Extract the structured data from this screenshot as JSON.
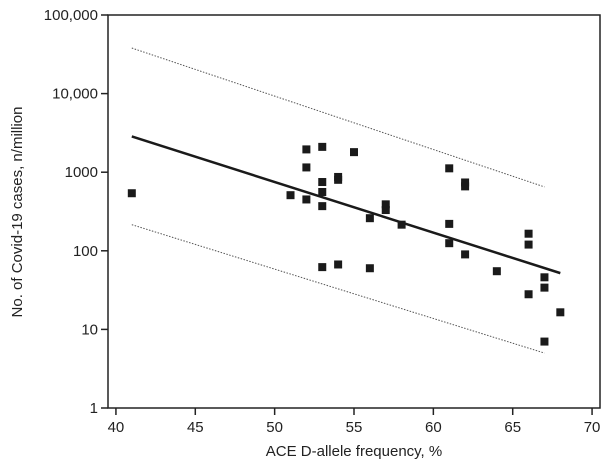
{
  "chart_data": {
    "type": "scatter",
    "xlabel": "ACE D-allele frequency, %",
    "ylabel": "No. of Covid-19 cases, n/million",
    "xlim": [
      39.5,
      70.5
    ],
    "ylim": [
      1,
      100000
    ],
    "yscale": "log",
    "x_ticks": [
      40,
      45,
      50,
      55,
      60,
      65,
      70
    ],
    "x_tick_labels": [
      "40",
      "45",
      "50",
      "55",
      "60",
      "65",
      "70"
    ],
    "y_ticks": [
      1,
      10,
      100,
      1000,
      10000,
      100000
    ],
    "y_tick_labels": [
      "1",
      "10",
      "100",
      "1000",
      "10,000",
      "100,000"
    ],
    "grid": false,
    "points": [
      {
        "x": 41,
        "y": 540
      },
      {
        "x": 51,
        "y": 510
      },
      {
        "x": 52,
        "y": 1950
      },
      {
        "x": 52,
        "y": 1150
      },
      {
        "x": 52,
        "y": 450
      },
      {
        "x": 53,
        "y": 2100
      },
      {
        "x": 53,
        "y": 750
      },
      {
        "x": 53,
        "y": 560
      },
      {
        "x": 53,
        "y": 370
      },
      {
        "x": 53,
        "y": 62
      },
      {
        "x": 54,
        "y": 870
      },
      {
        "x": 54,
        "y": 800
      },
      {
        "x": 54,
        "y": 67
      },
      {
        "x": 55,
        "y": 1800
      },
      {
        "x": 56,
        "y": 260
      },
      {
        "x": 56,
        "y": 60
      },
      {
        "x": 57,
        "y": 390
      },
      {
        "x": 57,
        "y": 330
      },
      {
        "x": 58,
        "y": 215
      },
      {
        "x": 61,
        "y": 1120
      },
      {
        "x": 61,
        "y": 220
      },
      {
        "x": 61,
        "y": 125
      },
      {
        "x": 62,
        "y": 740
      },
      {
        "x": 62,
        "y": 660
      },
      {
        "x": 62,
        "y": 90
      },
      {
        "x": 64,
        "y": 55
      },
      {
        "x": 66,
        "y": 165
      },
      {
        "x": 66,
        "y": 120
      },
      {
        "x": 66,
        "y": 28
      },
      {
        "x": 67,
        "y": 46
      },
      {
        "x": 67,
        "y": 34
      },
      {
        "x": 67,
        "y": 7
      },
      {
        "x": 68,
        "y": 16.5
      }
    ],
    "regression_line": {
      "x": [
        41,
        68
      ],
      "y": [
        2850,
        52
      ]
    },
    "upper_bound": {
      "x": [
        41,
        67
      ],
      "y": [
        38000,
        650
      ]
    },
    "lower_bound": {
      "x": [
        41,
        67
      ],
      "y": [
        215,
        5
      ]
    },
    "colors": {
      "marker": "#1a1a1a",
      "line": "#1a1a1a",
      "bounds": "#555555"
    }
  }
}
